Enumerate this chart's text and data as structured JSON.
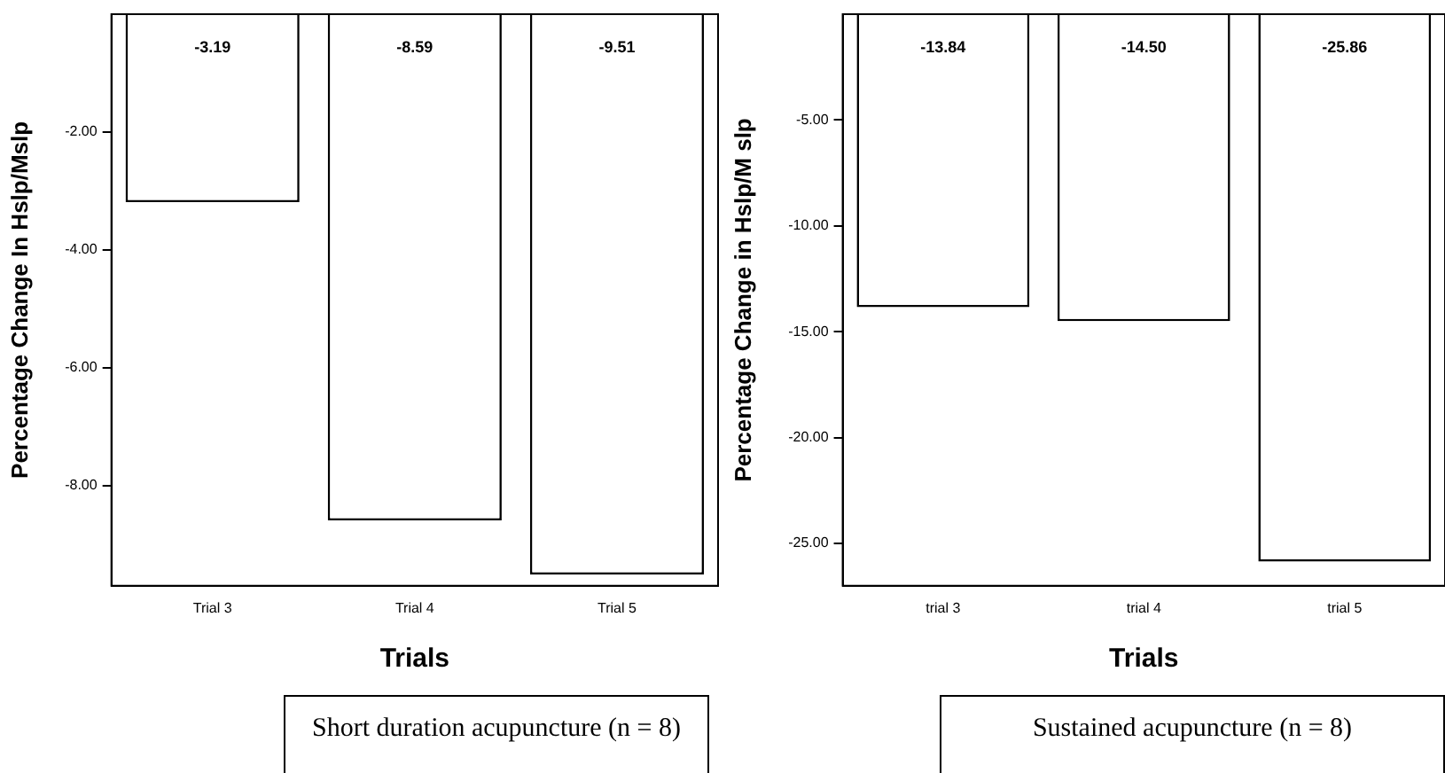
{
  "chart_data": [
    {
      "type": "bar",
      "title": "Short duration acupuncture (n = 8)",
      "xlabel": "Trials",
      "ylabel": "Percentage Change In Hslp/Mslp",
      "categories": [
        "Trial 3",
        "Trial 4",
        "Trial 5"
      ],
      "values": [
        -3.19,
        -8.59,
        -9.51
      ],
      "value_labels": [
        "-3.19",
        "-8.59",
        "-9.51"
      ],
      "color": "#ffffff",
      "ylim": [
        -9.7,
        0
      ],
      "yticks": [
        {
          "value": -2,
          "label": "-2.00"
        },
        {
          "value": -4,
          "label": "-4.00"
        },
        {
          "value": -6,
          "label": "-6.00"
        },
        {
          "value": -8,
          "label": "-8.00"
        }
      ],
      "grid": false,
      "legend": false
    },
    {
      "type": "bar",
      "title": "Sustained acupuncture (n = 8)",
      "xlabel": "Trials",
      "ylabel": "Percentage Change in Hslp/M slp",
      "categories": [
        "trial 3",
        "trial 4",
        "trial 5"
      ],
      "values": [
        -13.84,
        -14.5,
        -25.86
      ],
      "value_labels": [
        "-13.84",
        "-14.50",
        "-25.86"
      ],
      "color": "#ffffff",
      "ylim": [
        -27,
        0
      ],
      "yticks": [
        {
          "value": -5,
          "label": "-5.00"
        },
        {
          "value": -10,
          "label": "-10.00"
        },
        {
          "value": -15,
          "label": "-15.00"
        },
        {
          "value": -20,
          "label": "-20.00"
        },
        {
          "value": -25,
          "label": "-25.00"
        }
      ],
      "grid": false,
      "legend": false
    }
  ]
}
